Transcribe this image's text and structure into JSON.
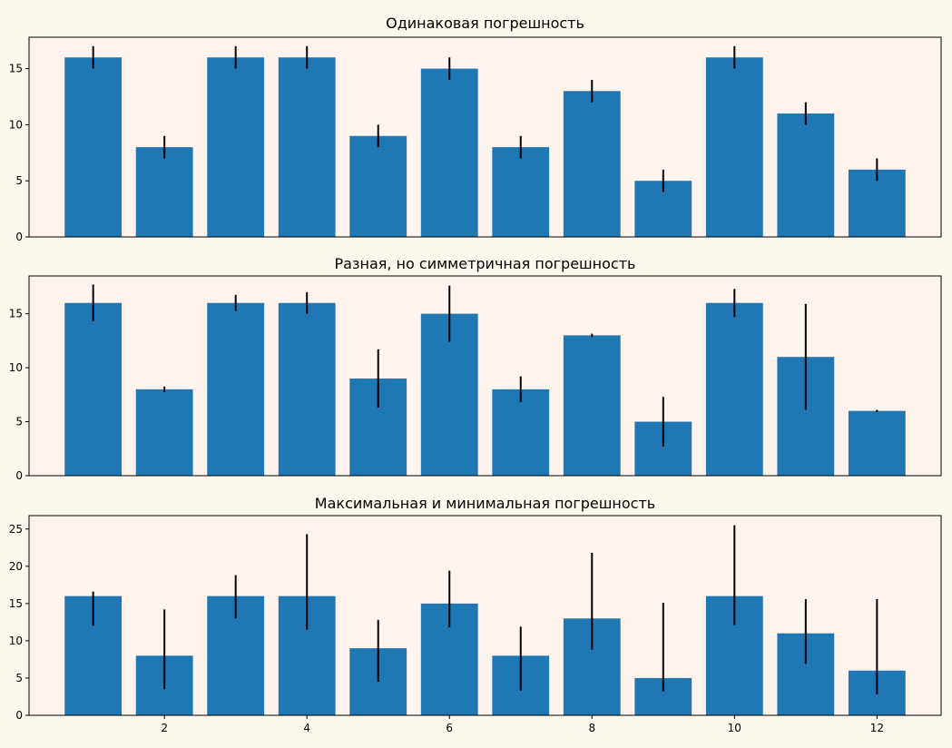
{
  "figure": {
    "background": "#fdf8ee",
    "axes_background": "#fff3ee",
    "bar_color": "#1f77b4",
    "error_color": "#000000"
  },
  "chart_data": [
    {
      "type": "bar",
      "title": "Одинаковая погрешность",
      "x": [
        1,
        2,
        3,
        4,
        5,
        6,
        7,
        8,
        9,
        10,
        11,
        12
      ],
      "values": [
        16,
        8,
        16,
        16,
        9,
        15,
        8,
        13,
        5,
        16,
        11,
        6
      ],
      "err_lower": [
        1,
        1,
        1,
        1,
        1,
        1,
        1,
        1,
        1,
        1,
        1,
        1
      ],
      "err_upper": [
        1,
        1,
        1,
        1,
        1,
        1,
        1,
        1,
        1,
        1,
        1,
        1
      ],
      "xlim": [
        0.1,
        12.9
      ],
      "ylim": [
        0,
        17.8
      ],
      "yticks": [
        0,
        5,
        10,
        15
      ],
      "xticks": []
    },
    {
      "type": "bar",
      "title": "Разная, но симметричная погрешность",
      "x": [
        1,
        2,
        3,
        4,
        5,
        6,
        7,
        8,
        9,
        10,
        11,
        12
      ],
      "values": [
        16,
        8,
        16,
        16,
        9,
        15,
        8,
        13,
        5,
        16,
        11,
        6
      ],
      "err_lower": [
        1.7,
        0.25,
        0.75,
        1.0,
        2.7,
        2.6,
        1.2,
        0.15,
        2.3,
        1.3,
        4.9,
        0.1
      ],
      "err_upper": [
        1.7,
        0.25,
        0.75,
        1.0,
        2.7,
        2.6,
        1.2,
        0.15,
        2.3,
        1.3,
        4.9,
        0.1
      ],
      "xlim": [
        0.1,
        12.9
      ],
      "ylim": [
        0,
        18.5
      ],
      "yticks": [
        0,
        5,
        10,
        15
      ],
      "xticks": []
    },
    {
      "type": "bar",
      "title": "Максимальная и минимальная погрешность",
      "x": [
        1,
        2,
        3,
        4,
        5,
        6,
        7,
        8,
        9,
        10,
        11,
        12
      ],
      "values": [
        16,
        8,
        16,
        16,
        9,
        15,
        8,
        13,
        5,
        16,
        11,
        6
      ],
      "err_lower": [
        4.0,
        4.5,
        3.0,
        4.5,
        4.5,
        3.2,
        4.7,
        4.2,
        1.8,
        3.9,
        4.1,
        3.2
      ],
      "err_upper": [
        0.6,
        6.2,
        2.8,
        8.3,
        3.8,
        4.4,
        3.9,
        8.8,
        10.1,
        9.5,
        4.6,
        9.6
      ],
      "xlim": [
        0.1,
        12.9
      ],
      "ylim": [
        0,
        26.8
      ],
      "yticks": [
        0,
        5,
        10,
        15,
        20,
        25
      ],
      "xticks": [
        2,
        4,
        6,
        8,
        10,
        12
      ]
    }
  ]
}
